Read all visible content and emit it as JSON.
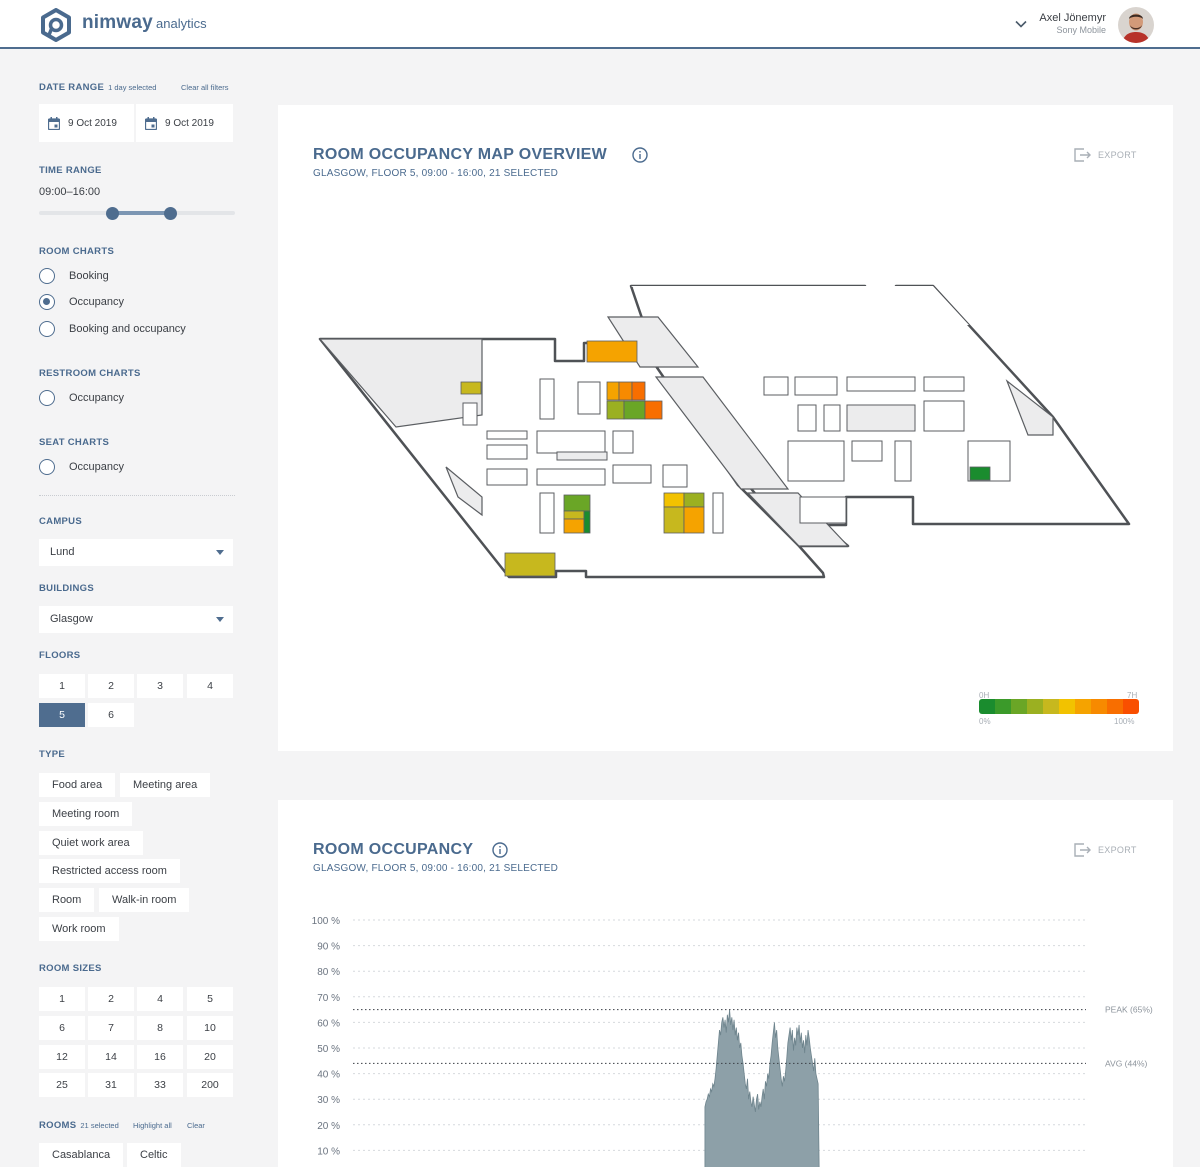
{
  "header": {
    "brand": "nimway",
    "brand_sub": "analytics",
    "user_name": "Axel Jönemyr",
    "user_org": "Sony Mobile"
  },
  "sidebar": {
    "date_range": {
      "title": "DATE RANGE",
      "note": "1 day selected",
      "clear": "Clear all filters",
      "from": "9 Oct 2019",
      "to": "9 Oct 2019"
    },
    "time_range": {
      "title": "TIME RANGE",
      "value": "09:00–16:00"
    },
    "room_charts": {
      "title": "ROOM CHARTS",
      "options": [
        "Booking",
        "Occupancy",
        "Booking and occupancy"
      ],
      "selected": "Occupancy"
    },
    "restroom_charts": {
      "title": "RESTROOM CHARTS",
      "options": [
        "Occupancy"
      ]
    },
    "seat_charts": {
      "title": "SEAT CHARTS",
      "options": [
        "Occupancy"
      ]
    },
    "campus": {
      "title": "CAMPUS",
      "value": "Lund"
    },
    "buildings": {
      "title": "BUILDINGS",
      "value": "Glasgow"
    },
    "floors": {
      "title": "FLOORS",
      "items": [
        "1",
        "2",
        "3",
        "4",
        "5",
        "6"
      ],
      "selected": "5"
    },
    "type": {
      "title": "TYPE",
      "items": [
        "Food area",
        "Meeting area",
        "Meeting room",
        "Quiet work area",
        "Restricted access room",
        "Room",
        "Walk-in room",
        "Work room"
      ]
    },
    "room_sizes": {
      "title": "ROOM SIZES",
      "items": [
        "1",
        "2",
        "4",
        "5",
        "6",
        "7",
        "8",
        "10",
        "12",
        "14",
        "16",
        "20",
        "25",
        "31",
        "33",
        "200"
      ]
    },
    "rooms": {
      "title": "ROOMS",
      "note": "21 selected",
      "highlight": "Highlight all",
      "clear": "Clear",
      "items": [
        "Casablanca",
        "Celtic"
      ]
    }
  },
  "map_card": {
    "title": "ROOM OCCUPANCY MAP OVERVIEW",
    "subtitle": "GLASGOW, FLOOR 5, 09:00 - 16:00, 21 SELECTED",
    "export": "EXPORT",
    "legend": {
      "top_left": "0H",
      "top_right": "7H",
      "bottom_left": "0%",
      "bottom_right": "100%",
      "colors": [
        "#1a8c2e",
        "#3b9a2a",
        "#6aa626",
        "#9bb021",
        "#c7b81e",
        "#f2c200",
        "#f5a300",
        "#f78a00",
        "#f86e00",
        "#f94f00"
      ]
    },
    "room_colors": {
      "green_dark": "#1a8c2e",
      "olive": "#9bb021",
      "yellow_olive": "#c7b81e",
      "orange": "#f5a300",
      "orange_red": "#f86e00"
    }
  },
  "chart_card": {
    "title": "ROOM OCCUPANCY",
    "subtitle": "GLASGOW, FLOOR 5, 09:00 - 16:00, 21 SELECTED",
    "export": "EXPORT"
  },
  "chart_data": {
    "type": "area",
    "title": "ROOM OCCUPANCY",
    "xlabel": "",
    "ylabel": "",
    "ylim": [
      0,
      100
    ],
    "y_ticks": [
      "10 %",
      "20 %",
      "30 %",
      "40 %",
      "50 %",
      "60 %",
      "70 %",
      "80 %",
      "90 %",
      "100 %"
    ],
    "grid": true,
    "reference_lines": [
      {
        "label": "PEAK (65%)",
        "value": 65
      },
      {
        "label": "AVG (44%)",
        "value": 44
      }
    ],
    "series": [
      {
        "color": "#8da0a8",
        "values": [
          0,
          0,
          0,
          0,
          0,
          0,
          0,
          0,
          0,
          0,
          0,
          0,
          0,
          0,
          0,
          0,
          0,
          0,
          0,
          0,
          0,
          0,
          0,
          0,
          0,
          0,
          0,
          0,
          0,
          0,
          0,
          0,
          0,
          0,
          0,
          0,
          0,
          0,
          0,
          0,
          0,
          0,
          0,
          0,
          0,
          0,
          0,
          0,
          0,
          0,
          0,
          0,
          0,
          0,
          0,
          0,
          0,
          0,
          0,
          0,
          0,
          0,
          0,
          0,
          0,
          0,
          0,
          0,
          0,
          0,
          0,
          0,
          0,
          0,
          0,
          0,
          0,
          0,
          0,
          0,
          0,
          0,
          0,
          0,
          0,
          0,
          0,
          0,
          0,
          0,
          0,
          0,
          0,
          0,
          0,
          0,
          0,
          0,
          0,
          0,
          0,
          0,
          0,
          0,
          0,
          0,
          0,
          0,
          0,
          0,
          0,
          0,
          0,
          0,
          0,
          0,
          0,
          0,
          0,
          0,
          0,
          0,
          0,
          0,
          0,
          0,
          0,
          0,
          0,
          0,
          0,
          0,
          0,
          0,
          0,
          0,
          0,
          0,
          0,
          0,
          0,
          0,
          0,
          0,
          0,
          0,
          0,
          0,
          0,
          0,
          0,
          0,
          0,
          0,
          0,
          0,
          0,
          0,
          0,
          0,
          0,
          0,
          0,
          0,
          0,
          0,
          0,
          0,
          0,
          0,
          0,
          0,
          0,
          0,
          0,
          0,
          0,
          0,
          0,
          0,
          0,
          0,
          0,
          0,
          0,
          0,
          0,
          0,
          0,
          0,
          0,
          0,
          0,
          0,
          0,
          0,
          0,
          0,
          0,
          0,
          0,
          0,
          0,
          0,
          0,
          0,
          0,
          0,
          0,
          0,
          0,
          0,
          0,
          0,
          0,
          0,
          0,
          0,
          0,
          0,
          0,
          0,
          0,
          0,
          0,
          0,
          0,
          0,
          0,
          0,
          0,
          0,
          0,
          0,
          0,
          0,
          0,
          0,
          0,
          0,
          0,
          0,
          0,
          0,
          0,
          0,
          0,
          0,
          0,
          0,
          0,
          0,
          0,
          0,
          0,
          0,
          0,
          0,
          0,
          0,
          0,
          0,
          0,
          0,
          0,
          0,
          0,
          0,
          0,
          0,
          0,
          0,
          0,
          0,
          0,
          0,
          0,
          0,
          0,
          0,
          0,
          0,
          0,
          0,
          0,
          0,
          0,
          0,
          0,
          0,
          0,
          0,
          0,
          0,
          0,
          0,
          0,
          0,
          0,
          0,
          0,
          0,
          0,
          0,
          0,
          0,
          0,
          0,
          0,
          0,
          0,
          0,
          0,
          0,
          27,
          29,
          30,
          32,
          31,
          34,
          33,
          36,
          35,
          38,
          42,
          47,
          52,
          57,
          55,
          60,
          62,
          58,
          61,
          56,
          63,
          60,
          65,
          59,
          62,
          57,
          61,
          55,
          58,
          53,
          56,
          50,
          52,
          47,
          44,
          40,
          36,
          34,
          38,
          30,
          33,
          29,
          27,
          31,
          28,
          25,
          30,
          32,
          26,
          29,
          27,
          31,
          34,
          30,
          37,
          35,
          40,
          38,
          44,
          47,
          52,
          56,
          60,
          54,
          57,
          50,
          46,
          42,
          38,
          35,
          39,
          37,
          41,
          46,
          52,
          55,
          58,
          53,
          57,
          49,
          54,
          51,
          58,
          55,
          59,
          52,
          56,
          50,
          53,
          48,
          55,
          51,
          57,
          54,
          50,
          47,
          44,
          41,
          46,
          40,
          38,
          36,
          0,
          0,
          0,
          0,
          0,
          0,
          0,
          0,
          0,
          0,
          0,
          0,
          0,
          0,
          0,
          0,
          0,
          0,
          0,
          0,
          0,
          0,
          0,
          0,
          0,
          0,
          0,
          0,
          0,
          0,
          0,
          0,
          0,
          0,
          0,
          0,
          0,
          0,
          0,
          0,
          0,
          0,
          0,
          0,
          0,
          0,
          0,
          0,
          0,
          0,
          0,
          0,
          0,
          0,
          0,
          0,
          0,
          0,
          0,
          0,
          0,
          0,
          0,
          0,
          0,
          0,
          0,
          0,
          0,
          0,
          0,
          0,
          0,
          0,
          0,
          0,
          0,
          0,
          0,
          0,
          0,
          0,
          0,
          0,
          0,
          0,
          0,
          0,
          0,
          0,
          0,
          0,
          0,
          0,
          0,
          0,
          0,
          0,
          0,
          0,
          0,
          0,
          0,
          0,
          0,
          0,
          0,
          0,
          0,
          0,
          0,
          0,
          0,
          0,
          0,
          0,
          0,
          0,
          0,
          0,
          0,
          0,
          0,
          0,
          0,
          0,
          0,
          0,
          0,
          0,
          0,
          0,
          0,
          0,
          0,
          0,
          0,
          0,
          0,
          0,
          0,
          0,
          0,
          0,
          0,
          0,
          0,
          0,
          0,
          0,
          0,
          0,
          0,
          0,
          0,
          0,
          0,
          0,
          0,
          0,
          0,
          0,
          0,
          0,
          0,
          0,
          0,
          0,
          0,
          0,
          0,
          0,
          0,
          0,
          0,
          0,
          0,
          0,
          0,
          0,
          0,
          0,
          0,
          0,
          0,
          0,
          0,
          0,
          0,
          0,
          0,
          0,
          0,
          0,
          0,
          0,
          0,
          0,
          0,
          0,
          0,
          0,
          0,
          0,
          0,
          0,
          0,
          0,
          0,
          0,
          0,
          0,
          0,
          0,
          0,
          0,
          0,
          0,
          0,
          0,
          0,
          0,
          0,
          0,
          0,
          0,
          0,
          0,
          0,
          0,
          0,
          0,
          0,
          0,
          0,
          0,
          0,
          0,
          0
        ]
      }
    ]
  }
}
